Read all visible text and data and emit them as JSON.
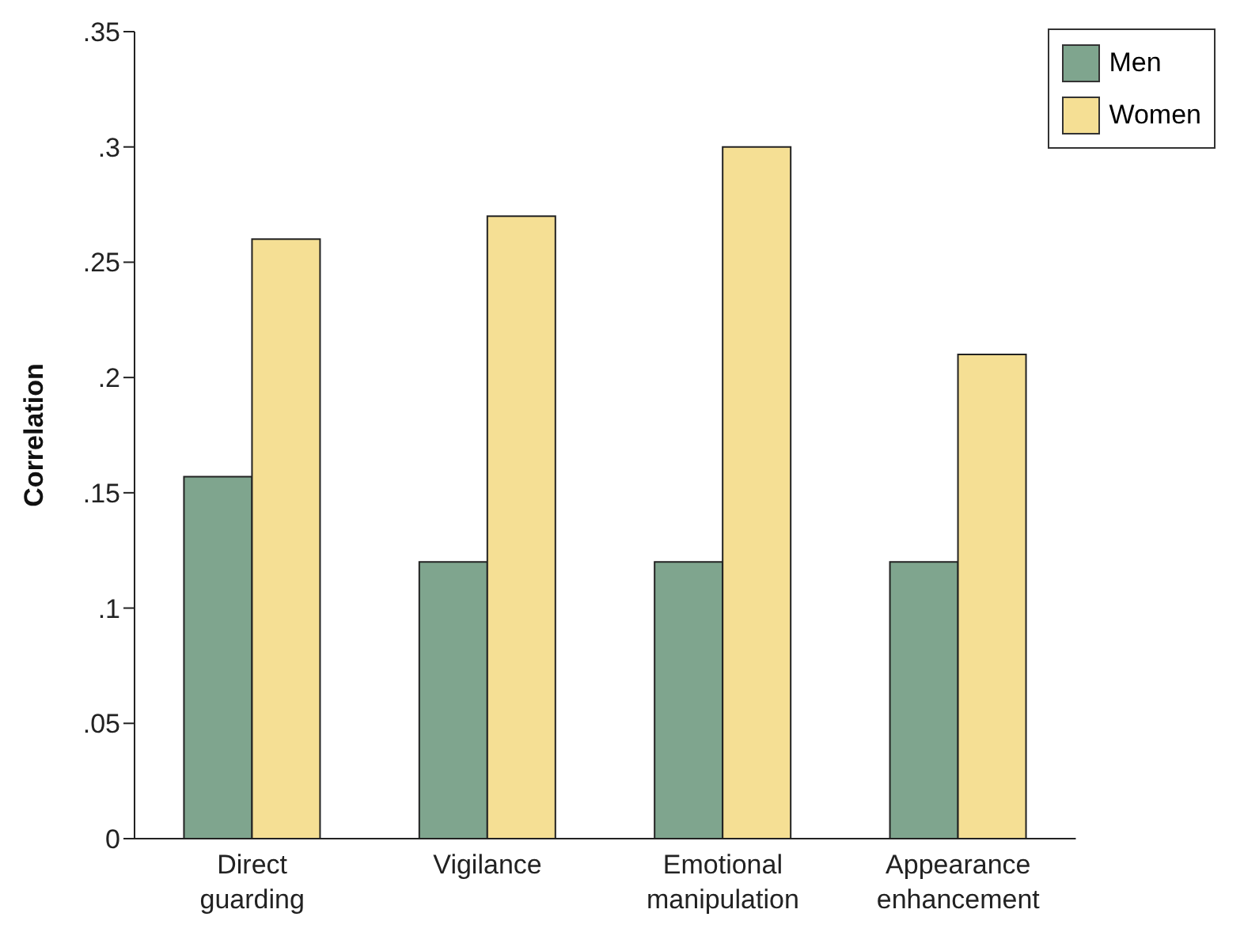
{
  "chart_data": {
    "type": "bar",
    "ylabel": "Correlation",
    "categories": [
      "Direct guarding",
      "Vigilance",
      "Emotional manipulation",
      "Appearance enhancement"
    ],
    "series": [
      {
        "name": "Men",
        "color": "#7fa58e",
        "values": [
          0.157,
          0.12,
          0.12,
          0.12
        ]
      },
      {
        "name": "Women",
        "color": "#f5df94",
        "values": [
          0.26,
          0.27,
          0.3,
          0.21
        ]
      }
    ],
    "ylim": [
      0,
      0.35
    ],
    "yticks": [
      {
        "value": 0,
        "label": "0"
      },
      {
        "value": 0.05,
        "label": ".05"
      },
      {
        "value": 0.1,
        "label": ".1"
      },
      {
        "value": 0.15,
        "label": ".15"
      },
      {
        "value": 0.2,
        "label": ".2"
      },
      {
        "value": 0.25,
        "label": ".25"
      },
      {
        "value": 0.3,
        "label": ".3"
      },
      {
        "value": 0.35,
        "label": ".35"
      }
    ],
    "grid": false,
    "legend": "top right"
  }
}
